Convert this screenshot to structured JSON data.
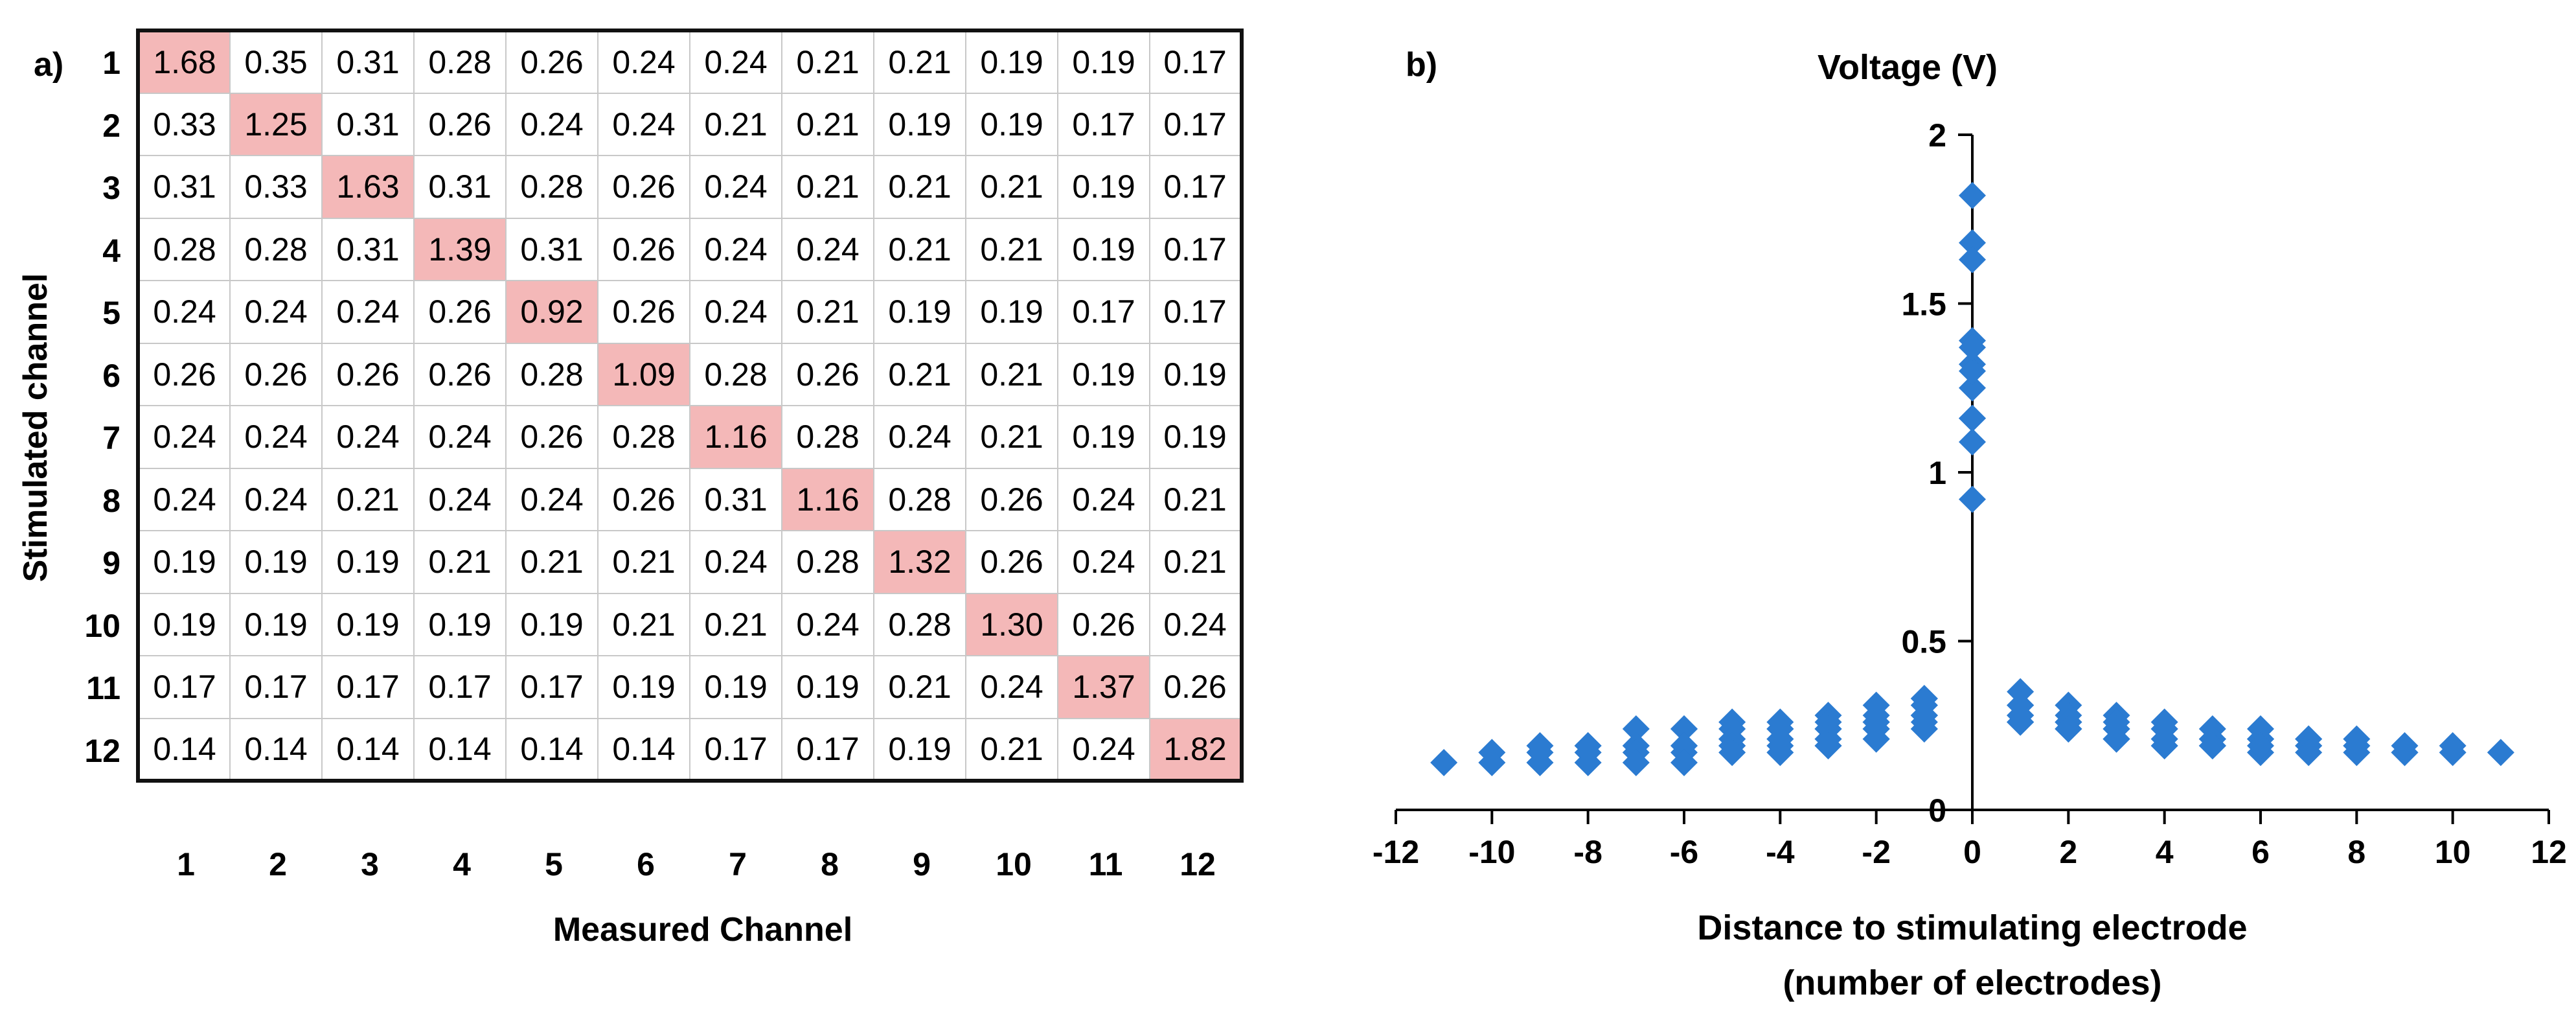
{
  "panel_a": {
    "label": "a)",
    "ylabel": "Stimulated channel",
    "xlabel": "Measured Channel",
    "rows": [
      "1",
      "2",
      "3",
      "4",
      "5",
      "6",
      "7",
      "8",
      "9",
      "10",
      "11",
      "12"
    ],
    "cols": [
      "1",
      "2",
      "3",
      "4",
      "5",
      "6",
      "7",
      "8",
      "9",
      "10",
      "11",
      "12"
    ],
    "highlight_color": "#f4b8b8"
  },
  "panel_b": {
    "label": "b)"
  },
  "chart_data": [
    {
      "type": "table",
      "title": "",
      "xlabel": "Measured Channel",
      "ylabel": "Stimulated channel",
      "row_labels": [
        "1",
        "2",
        "3",
        "4",
        "5",
        "6",
        "7",
        "8",
        "9",
        "10",
        "11",
        "12"
      ],
      "col_labels": [
        "1",
        "2",
        "3",
        "4",
        "5",
        "6",
        "7",
        "8",
        "9",
        "10",
        "11",
        "12"
      ],
      "values": [
        [
          "1.68",
          "0.35",
          "0.31",
          "0.28",
          "0.26",
          "0.24",
          "0.24",
          "0.21",
          "0.21",
          "0.19",
          "0.19",
          "0.17"
        ],
        [
          "0.33",
          "1.25",
          "0.31",
          "0.26",
          "0.24",
          "0.24",
          "0.21",
          "0.21",
          "0.19",
          "0.19",
          "0.17",
          "0.17"
        ],
        [
          "0.31",
          "0.33",
          "1.63",
          "0.31",
          "0.28",
          "0.26",
          "0.24",
          "0.21",
          "0.21",
          "0.21",
          "0.19",
          "0.17"
        ],
        [
          "0.28",
          "0.28",
          "0.31",
          "1.39",
          "0.31",
          "0.26",
          "0.24",
          "0.24",
          "0.21",
          "0.21",
          "0.19",
          "0.17"
        ],
        [
          "0.24",
          "0.24",
          "0.24",
          "0.26",
          "0.92",
          "0.26",
          "0.24",
          "0.21",
          "0.19",
          "0.19",
          "0.17",
          "0.17"
        ],
        [
          "0.26",
          "0.26",
          "0.26",
          "0.26",
          "0.28",
          "1.09",
          "0.28",
          "0.26",
          "0.21",
          "0.21",
          "0.19",
          "0.19"
        ],
        [
          "0.24",
          "0.24",
          "0.24",
          "0.24",
          "0.26",
          "0.28",
          "1.16",
          "0.28",
          "0.24",
          "0.21",
          "0.19",
          "0.19"
        ],
        [
          "0.24",
          "0.24",
          "0.21",
          "0.24",
          "0.24",
          "0.26",
          "0.31",
          "1.16",
          "0.28",
          "0.26",
          "0.24",
          "0.21"
        ],
        [
          "0.19",
          "0.19",
          "0.19",
          "0.21",
          "0.21",
          "0.21",
          "0.24",
          "0.28",
          "1.32",
          "0.26",
          "0.24",
          "0.21"
        ],
        [
          "0.19",
          "0.19",
          "0.19",
          "0.19",
          "0.19",
          "0.21",
          "0.21",
          "0.24",
          "0.28",
          "1.30",
          "0.26",
          "0.24"
        ],
        [
          "0.17",
          "0.17",
          "0.17",
          "0.17",
          "0.17",
          "0.19",
          "0.19",
          "0.19",
          "0.21",
          "0.24",
          "1.37",
          "0.26"
        ],
        [
          "0.14",
          "0.14",
          "0.14",
          "0.14",
          "0.14",
          "0.14",
          "0.17",
          "0.17",
          "0.19",
          "0.21",
          "0.24",
          "1.82"
        ]
      ],
      "highlight": "diagonal"
    },
    {
      "type": "scatter",
      "title": "Voltage (V)",
      "xlabel": "Distance to stimulating electrode",
      "xlabel_line2": "(number of electrodes)",
      "ylabel": "Voltage (V)",
      "xlim": [
        -12,
        12
      ],
      "ylim": [
        0,
        2
      ],
      "xticks": [
        -12,
        -10,
        -8,
        -6,
        -4,
        -2,
        0,
        2,
        4,
        6,
        8,
        10,
        12
      ],
      "yticks": [
        0,
        0.5,
        1,
        1.5,
        2
      ],
      "ytick_labels": [
        "0",
        "0.5",
        "1",
        "1.5",
        "2"
      ],
      "marker": "diamond",
      "marker_color": "#2b7bd1",
      "derived_from": "distance = measured channel - stimulated channel; voltage = panel a value"
    }
  ]
}
